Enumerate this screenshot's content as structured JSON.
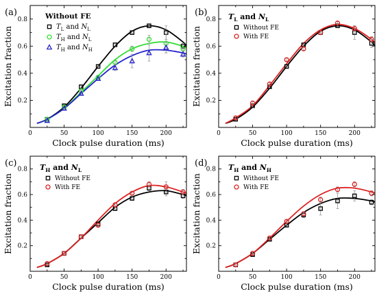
{
  "panels": [
    {
      "id": "a",
      "label": "(a)",
      "title": "Without FE",
      "xlabel": "Clock pulse duration (ms)",
      "ylabel": "Excitation fraction",
      "xlim": [
        0,
        230
      ],
      "ylim": [
        0,
        0.9
      ],
      "xticks": [
        0,
        50,
        100,
        150,
        200
      ],
      "yticks": [
        0.2,
        0.4,
        0.6,
        0.8
      ],
      "legend": [
        {
          "marker": "square",
          "color": "#000000",
          "label_main": "T",
          "label_sub": "L",
          "label_mid": " and ",
          "label_main2": "N",
          "label_sub2": "L"
        },
        {
          "marker": "circle",
          "color": "#33dd33",
          "label_main": "T",
          "label_sub": "H",
          "label_mid": " and ",
          "label_main2": "N",
          "label_sub2": "L"
        },
        {
          "marker": "triangle",
          "color": "#2222cc",
          "label_main": "T",
          "label_sub": "H",
          "label_mid": " and ",
          "label_main2": "N",
          "label_sub2": "H"
        }
      ],
      "series": [
        {
          "name": "TL and NL",
          "marker": "square",
          "color": "#000000",
          "x": [
            25,
            50,
            75,
            100,
            125,
            150,
            175,
            200,
            225
          ],
          "y": [
            0.06,
            0.16,
            0.3,
            0.45,
            0.61,
            0.7,
            0.75,
            0.7,
            0.6
          ],
          "err": [
            0.01,
            0.01,
            0.01,
            0.01,
            0.01,
            0.01,
            0.01,
            0.05,
            0.02
          ],
          "fit_x": [
            10,
            25,
            50,
            75,
            100,
            125,
            150,
            175,
            200,
            225,
            230
          ],
          "fit_y": [
            0.03,
            0.06,
            0.15,
            0.29,
            0.45,
            0.6,
            0.71,
            0.75,
            0.72,
            0.63,
            0.6
          ]
        },
        {
          "name": "TH and NL",
          "marker": "circle",
          "color": "#33dd33",
          "x": [
            25,
            50,
            75,
            100,
            125,
            150,
            175,
            200,
            225
          ],
          "y": [
            0.06,
            0.15,
            0.27,
            0.37,
            0.48,
            0.58,
            0.65,
            0.62,
            0.58
          ],
          "err": [
            0.01,
            0.01,
            0.01,
            0.01,
            0.01,
            0.02,
            0.03,
            0.07,
            0.03
          ],
          "fit_x": [
            10,
            25,
            50,
            75,
            100,
            125,
            150,
            175,
            200,
            225,
            230
          ],
          "fit_y": [
            0.03,
            0.06,
            0.14,
            0.26,
            0.38,
            0.5,
            0.58,
            0.62,
            0.63,
            0.6,
            0.59
          ]
        },
        {
          "name": "TH and NH",
          "marker": "triangle",
          "color": "#2222cc",
          "x": [
            25,
            50,
            75,
            100,
            125,
            150,
            175,
            200,
            225
          ],
          "y": [
            0.05,
            0.14,
            0.25,
            0.36,
            0.44,
            0.49,
            0.55,
            0.59,
            0.54
          ],
          "err": [
            0.01,
            0.01,
            0.01,
            0.01,
            0.02,
            0.05,
            0.06,
            0.04,
            0.02
          ],
          "fit_x": [
            10,
            25,
            50,
            75,
            100,
            125,
            150,
            175,
            200,
            225,
            230
          ],
          "fit_y": [
            0.03,
            0.06,
            0.14,
            0.25,
            0.36,
            0.46,
            0.53,
            0.57,
            0.57,
            0.55,
            0.54
          ]
        }
      ]
    },
    {
      "id": "b",
      "label": "(b)",
      "title_parts": [
        "T",
        "L",
        " and ",
        "N",
        "L"
      ],
      "xlabel": "Clock pulse duration (ms)",
      "ylabel": "Excitation fraction",
      "xlim": [
        0,
        230
      ],
      "ylim": [
        0,
        0.9
      ],
      "xticks": [
        0,
        50,
        100,
        150,
        200
      ],
      "yticks": [
        0.2,
        0.4,
        0.6,
        0.8
      ],
      "legend": [
        {
          "marker": "square",
          "color": "#000000",
          "label": "Without FE"
        },
        {
          "marker": "circle",
          "color": "#dd2222",
          "label": "With FE"
        }
      ],
      "series": [
        {
          "name": "Without FE",
          "marker": "square",
          "color": "#000000",
          "x": [
            25,
            50,
            75,
            100,
            125,
            150,
            175,
            200,
            225
          ],
          "y": [
            0.06,
            0.16,
            0.3,
            0.45,
            0.61,
            0.7,
            0.75,
            0.7,
            0.62
          ],
          "err": [
            0.01,
            0.01,
            0.01,
            0.01,
            0.01,
            0.01,
            0.01,
            0.05,
            0.03
          ],
          "fit_x": [
            10,
            25,
            50,
            75,
            100,
            125,
            150,
            175,
            200,
            225,
            230
          ],
          "fit_y": [
            0.03,
            0.06,
            0.15,
            0.29,
            0.45,
            0.6,
            0.71,
            0.75,
            0.72,
            0.63,
            0.6
          ]
        },
        {
          "name": "With FE",
          "marker": "circle",
          "color": "#dd2222",
          "x": [
            25,
            50,
            75,
            100,
            125,
            150,
            175,
            200,
            225
          ],
          "y": [
            0.07,
            0.18,
            0.32,
            0.5,
            0.58,
            0.7,
            0.77,
            0.73,
            0.65
          ],
          "err": [
            0.01,
            0.01,
            0.01,
            0.01,
            0.01,
            0.01,
            0.01,
            0.02,
            0.02
          ],
          "fit_x": [
            10,
            25,
            50,
            75,
            100,
            125,
            150,
            175,
            200,
            225,
            230
          ],
          "fit_y": [
            0.03,
            0.07,
            0.16,
            0.31,
            0.47,
            0.62,
            0.72,
            0.76,
            0.73,
            0.65,
            0.62
          ]
        }
      ]
    },
    {
      "id": "c",
      "label": "(c)",
      "title_parts": [
        "T",
        "H",
        " and ",
        "N",
        "L"
      ],
      "xlabel": "Clock pulse duration (ms)",
      "ylabel": "Excitation fraction",
      "xlim": [
        0,
        230
      ],
      "ylim": [
        0,
        0.9
      ],
      "xticks": [
        0,
        50,
        100,
        150,
        200
      ],
      "yticks": [
        0.2,
        0.4,
        0.6,
        0.8
      ],
      "legend": [
        {
          "marker": "square",
          "color": "#000000",
          "label": "Without FE"
        },
        {
          "marker": "circle",
          "color": "#dd2222",
          "label": "With FE"
        }
      ],
      "series": [
        {
          "name": "Without FE",
          "marker": "square",
          "color": "#000000",
          "x": [
            25,
            50,
            75,
            100,
            125,
            150,
            175,
            200,
            225
          ],
          "y": [
            0.05,
            0.14,
            0.27,
            0.37,
            0.49,
            0.57,
            0.65,
            0.62,
            0.59
          ],
          "err": [
            0.01,
            0.01,
            0.01,
            0.01,
            0.01,
            0.01,
            0.02,
            0.03,
            0.02
          ],
          "fit_x": [
            10,
            25,
            50,
            75,
            100,
            125,
            150,
            175,
            200,
            225,
            230
          ],
          "fit_y": [
            0.03,
            0.06,
            0.14,
            0.26,
            0.38,
            0.5,
            0.58,
            0.62,
            0.63,
            0.6,
            0.59
          ]
        },
        {
          "name": "With FE",
          "marker": "circle",
          "color": "#dd2222",
          "x": [
            25,
            50,
            75,
            100,
            125,
            150,
            175,
            200,
            225
          ],
          "y": [
            0.06,
            0.14,
            0.27,
            0.36,
            0.52,
            0.61,
            0.68,
            0.66,
            0.62
          ],
          "err": [
            0.01,
            0.01,
            0.01,
            0.01,
            0.01,
            0.01,
            0.02,
            0.04,
            0.02
          ],
          "fit_x": [
            10,
            25,
            50,
            75,
            100,
            125,
            150,
            175,
            200,
            225,
            230
          ],
          "fit_y": [
            0.03,
            0.06,
            0.14,
            0.26,
            0.4,
            0.53,
            0.62,
            0.67,
            0.66,
            0.62,
            0.61
          ]
        }
      ]
    },
    {
      "id": "d",
      "label": "(d)",
      "title_parts": [
        "T",
        "H",
        " and ",
        "N",
        "H"
      ],
      "xlabel": "Clock pulse duration (ms)",
      "ylabel": "Excitation fraction",
      "xlim": [
        0,
        230
      ],
      "ylim": [
        0,
        0.9
      ],
      "xticks": [
        0,
        50,
        100,
        150,
        200
      ],
      "yticks": [
        0.2,
        0.4,
        0.6,
        0.8
      ],
      "legend": [
        {
          "marker": "square",
          "color": "#000000",
          "label": "Without FE"
        },
        {
          "marker": "circle",
          "color": "#dd2222",
          "label": "With FE"
        }
      ],
      "series": [
        {
          "name": "Without FE",
          "marker": "square",
          "color": "#000000",
          "x": [
            25,
            50,
            75,
            100,
            125,
            150,
            175,
            200,
            225
          ],
          "y": [
            0.05,
            0.13,
            0.25,
            0.36,
            0.44,
            0.49,
            0.55,
            0.59,
            0.54
          ],
          "err": [
            0.01,
            0.01,
            0.01,
            0.01,
            0.02,
            0.05,
            0.06,
            0.04,
            0.02
          ],
          "fit_x": [
            10,
            25,
            50,
            75,
            100,
            125,
            150,
            175,
            200,
            225,
            230
          ],
          "fit_y": [
            0.03,
            0.06,
            0.14,
            0.25,
            0.36,
            0.46,
            0.53,
            0.57,
            0.57,
            0.55,
            0.54
          ]
        },
        {
          "name": "With FE",
          "marker": "circle",
          "color": "#dd2222",
          "x": [
            25,
            50,
            75,
            100,
            125,
            150,
            175,
            200,
            225
          ],
          "y": [
            0.05,
            0.14,
            0.26,
            0.39,
            0.45,
            0.56,
            0.64,
            0.68,
            0.61
          ],
          "err": [
            0.01,
            0.01,
            0.01,
            0.01,
            0.01,
            0.02,
            0.02,
            0.02,
            0.02
          ],
          "fit_x": [
            10,
            25,
            50,
            75,
            100,
            125,
            150,
            175,
            200,
            225,
            230
          ],
          "fit_y": [
            0.03,
            0.06,
            0.14,
            0.26,
            0.39,
            0.51,
            0.6,
            0.65,
            0.65,
            0.62,
            0.61
          ]
        }
      ]
    }
  ]
}
